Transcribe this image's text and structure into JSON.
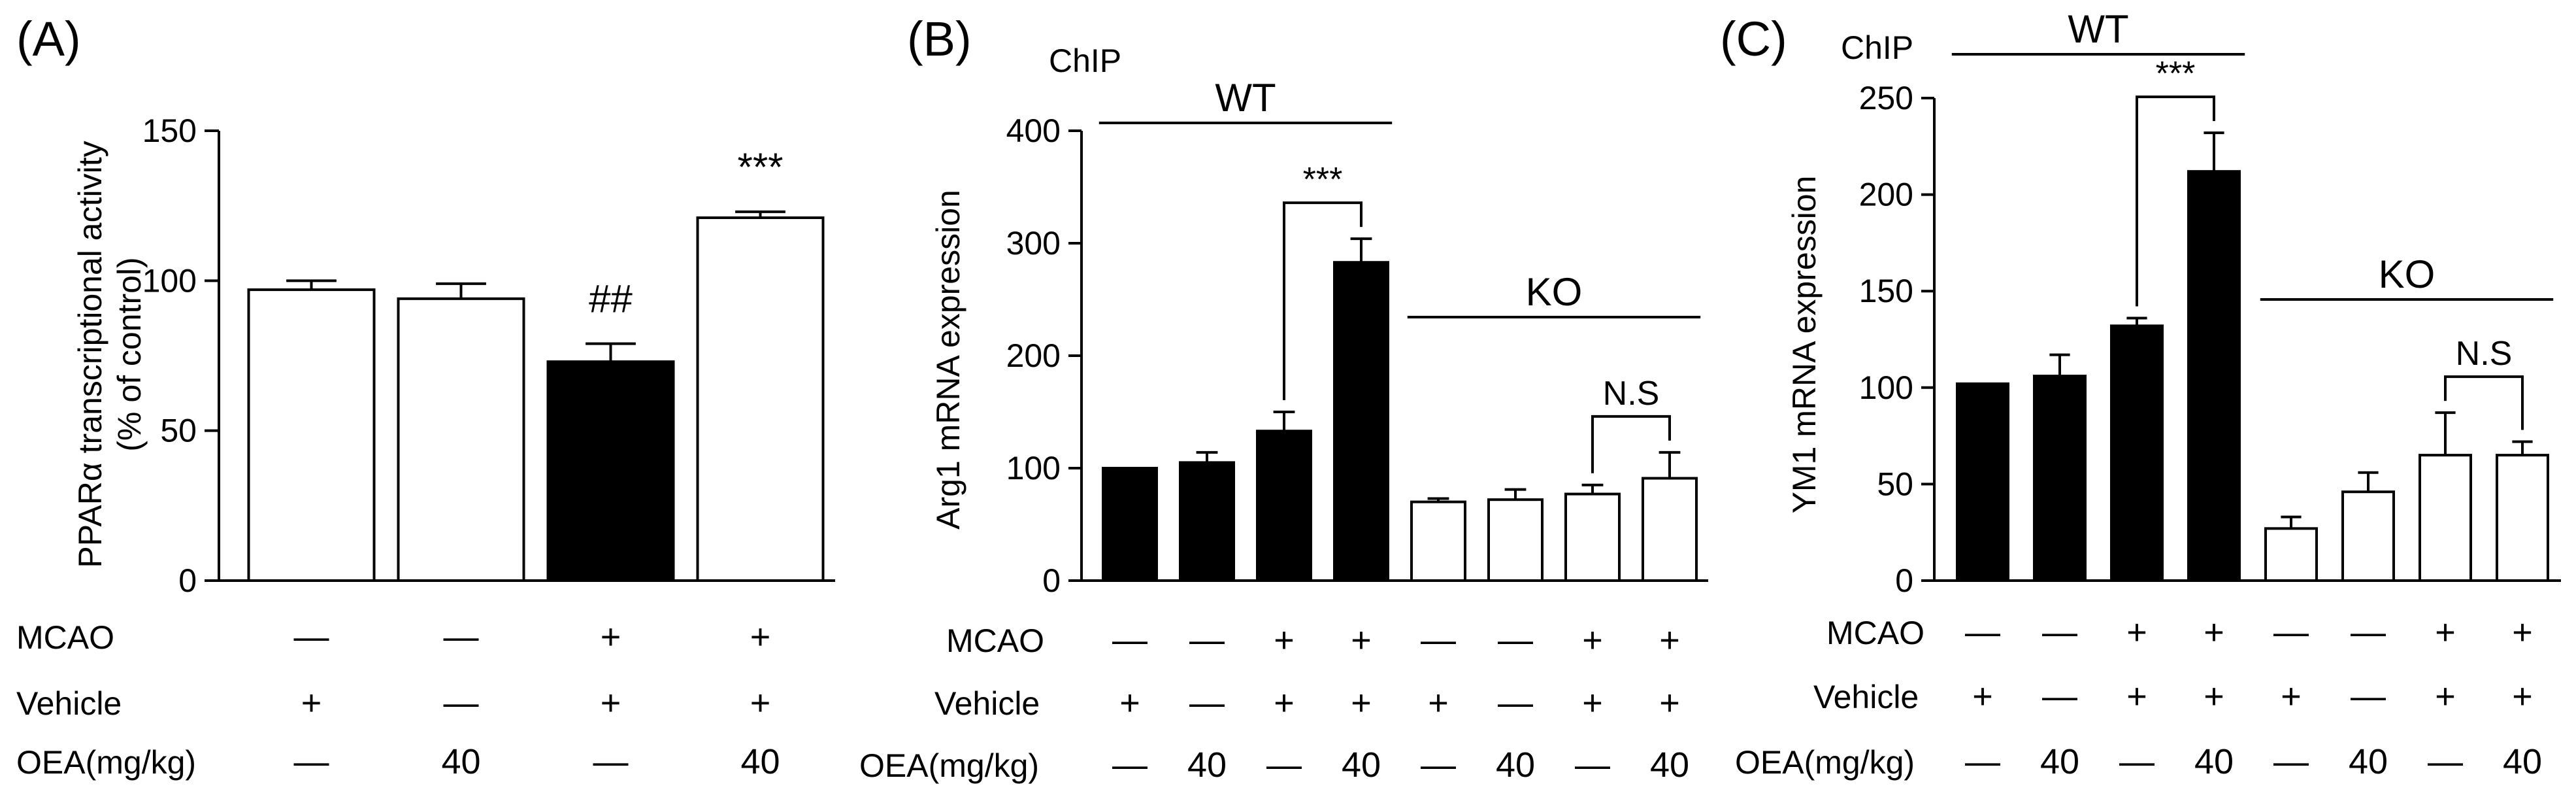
{
  "chart_data": [
    {
      "type": "bar",
      "panel_label": "(A)",
      "ylabel_line1": "PPARα transcriptional activity",
      "ylabel_line2": "(% of control)",
      "ylim": [
        0,
        150
      ],
      "yticks": [
        "0",
        "50",
        "100",
        "150"
      ],
      "values": [
        97,
        94,
        73,
        121
      ],
      "errors": [
        3,
        5,
        6,
        2
      ],
      "fills": [
        "white",
        "white",
        "black",
        "white"
      ],
      "bar_labels": [
        "",
        "",
        "##",
        "***"
      ],
      "conditions": {
        "labels": [
          "MCAO",
          "Vehicle",
          "OEA(mg/kg)"
        ],
        "rows": [
          [
            "—",
            "—",
            "+",
            "+"
          ],
          [
            "+",
            "—",
            "+",
            "+"
          ],
          [
            "—",
            "40",
            "—",
            "40"
          ]
        ]
      }
    },
    {
      "type": "bar",
      "panel_label": "(B)",
      "corner_label": "ChIP",
      "ylabel": "Arg1 mRNA expression",
      "ylim": [
        0,
        400
      ],
      "yticks": [
        "0",
        "100",
        "200",
        "300",
        "400"
      ],
      "values": [
        100,
        105,
        133,
        283,
        70,
        72,
        77,
        91
      ],
      "errors": [
        0,
        9,
        17,
        21,
        3,
        9,
        8,
        23
      ],
      "fills": [
        "black",
        "black",
        "black",
        "black",
        "white",
        "white",
        "white",
        "white"
      ],
      "groups": [
        {
          "label": "WT",
          "from": 0,
          "to": 3
        },
        {
          "label": "KO",
          "from": 4,
          "to": 7
        }
      ],
      "comparisons": [
        {
          "from": 2,
          "to": 3,
          "label": "***"
        },
        {
          "from": 6,
          "to": 7,
          "label": "N.S"
        }
      ],
      "conditions": {
        "labels": [
          "MCAO",
          "Vehicle",
          "OEA(mg/kg)"
        ],
        "rows": [
          [
            "—",
            "—",
            "+",
            "+",
            "—",
            "—",
            "+",
            "+"
          ],
          [
            "+",
            "—",
            "+",
            "+",
            "+",
            "—",
            "+",
            "+"
          ],
          [
            "—",
            "40",
            "—",
            "40",
            "—",
            "40",
            "—",
            "40"
          ]
        ]
      }
    },
    {
      "type": "bar",
      "panel_label": "(C)",
      "corner_label": "ChIP",
      "ylabel": "YM1 mRNA expression",
      "ylim": [
        0,
        250
      ],
      "yticks": [
        "0",
        "50",
        "100",
        "150",
        "200",
        "250"
      ],
      "values": [
        102,
        106,
        132,
        212,
        27,
        46,
        65,
        65
      ],
      "errors": [
        0,
        11,
        4,
        20,
        6,
        10,
        22,
        7
      ],
      "fills": [
        "black",
        "black",
        "black",
        "black",
        "white",
        "white",
        "white",
        "white"
      ],
      "groups": [
        {
          "label": "WT",
          "from": 0,
          "to": 3
        },
        {
          "label": "KO",
          "from": 4,
          "to": 7
        }
      ],
      "comparisons": [
        {
          "from": 2,
          "to": 3,
          "label": "***"
        },
        {
          "from": 6,
          "to": 7,
          "label": "N.S"
        }
      ],
      "conditions": {
        "labels": [
          "MCAO",
          "Vehicle",
          "OEA(mg/kg)"
        ],
        "rows": [
          [
            "—",
            "—",
            "+",
            "+",
            "—",
            "—",
            "+",
            "+"
          ],
          [
            "+",
            "—",
            "+",
            "+",
            "+",
            "—",
            "+",
            "+"
          ],
          [
            "—",
            "40",
            "—",
            "40",
            "—",
            "40",
            "—",
            "40"
          ]
        ]
      }
    }
  ]
}
